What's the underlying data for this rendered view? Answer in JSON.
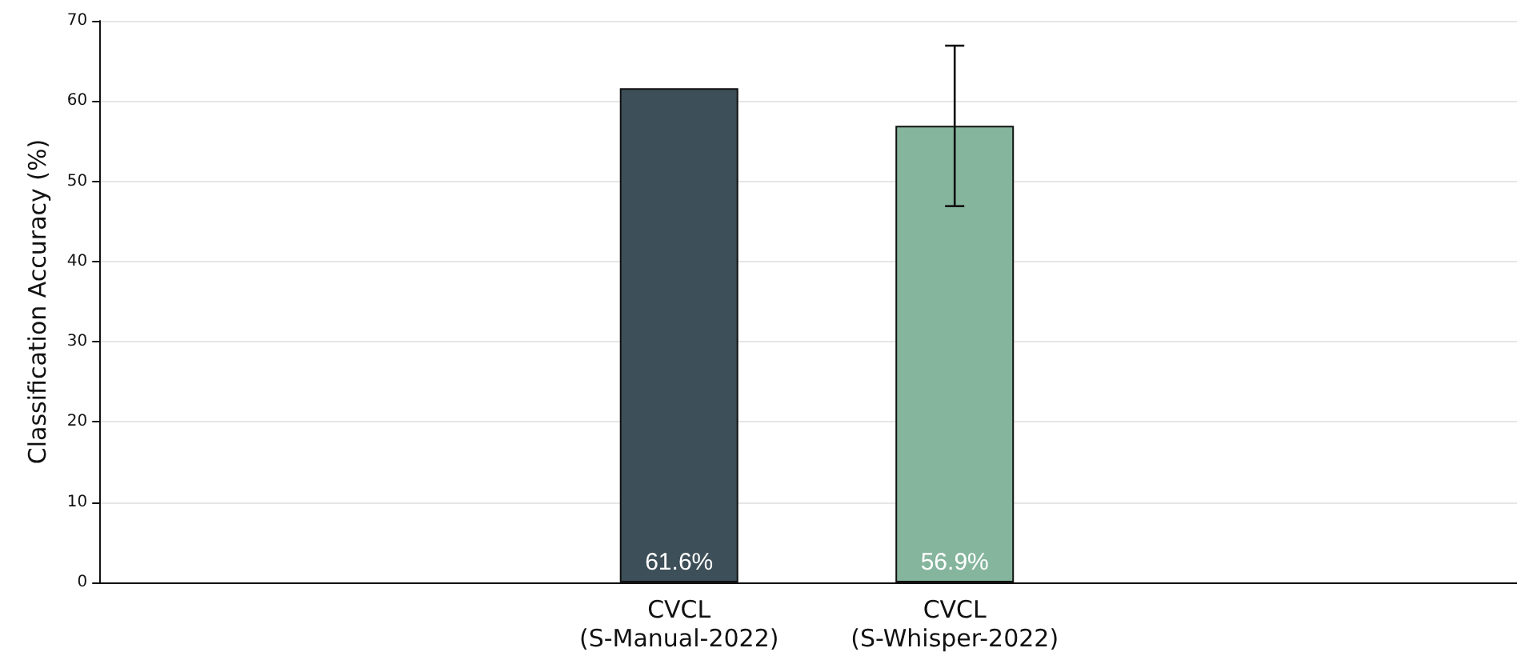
{
  "chart_data": {
    "type": "bar",
    "ylabel": "Classification Accuracy (%)",
    "categories": [
      "CVCL\n(S-Manual-2022)",
      "CVCL\n(S-Whisper-2022)"
    ],
    "values": [
      61.6,
      56.9
    ],
    "colors": [
      "#3d4f58",
      "#85b59d"
    ],
    "errors": [
      null,
      10
    ],
    "value_labels": [
      "61.6%",
      "56.9%"
    ],
    "ylim": [
      0,
      70
    ],
    "yticks": [
      0,
      10,
      20,
      30,
      40,
      50,
      60,
      70
    ],
    "grid": "y"
  }
}
